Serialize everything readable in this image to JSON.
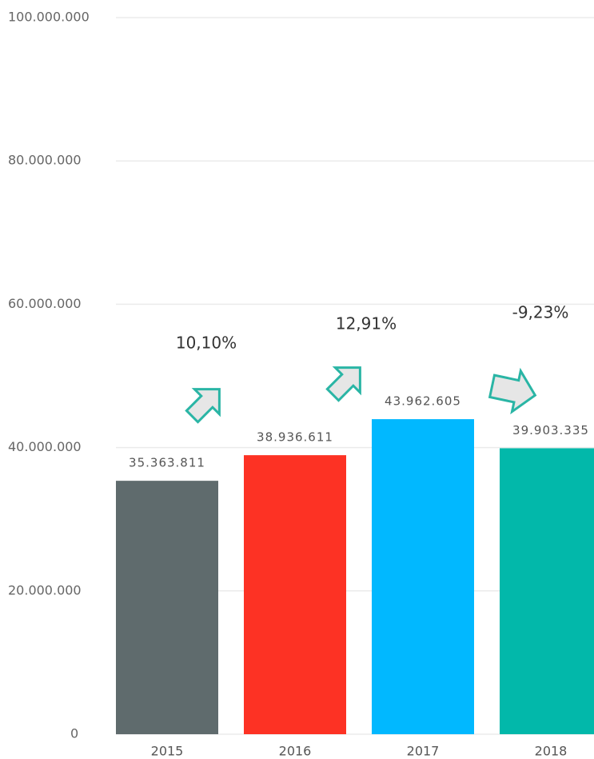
{
  "chart_data": {
    "type": "bar",
    "categories": [
      "2015",
      "2016",
      "2017",
      "2018"
    ],
    "values": [
      35363811,
      38936611,
      43962605,
      39903335
    ],
    "value_labels": [
      "35.363.811",
      "38.936.611",
      "43.962.605",
      "39.903.335"
    ],
    "colors": [
      "#5f6b6d",
      "#fd3224",
      "#01b8ff",
      "#02b8aa"
    ],
    "ylim": [
      0,
      100000000
    ],
    "yticks": [
      0,
      {
        "value": 20000000,
        "label": "20.000.000"
      },
      {
        "value": 40000000,
        "label": "40.000.000"
      },
      {
        "value": 60000000,
        "label": "60.000.000"
      },
      {
        "value": 80000000,
        "label": "80.000.000"
      },
      {
        "value": 100000000,
        "label": "100.000.000"
      }
    ],
    "grid": true,
    "annotations": [
      "10,10%",
      "12,91%",
      "-9,23%"
    ]
  }
}
